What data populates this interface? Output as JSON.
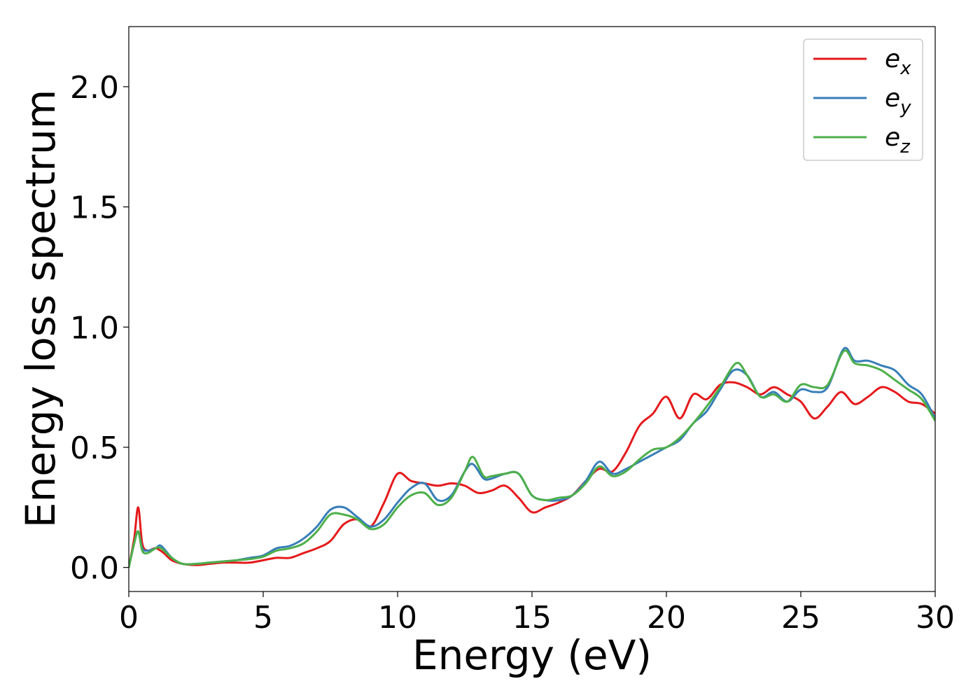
{
  "chart_data": {
    "type": "line",
    "xlabel": "Energy (eV)",
    "ylabel": "Energy loss spectrum",
    "xlim": [
      0,
      30
    ],
    "ylim": [
      -0.1,
      2.25
    ],
    "xticks": [
      "0",
      "5",
      "10",
      "15",
      "20",
      "25",
      "30"
    ],
    "yticks": [
      "0.0",
      "0.5",
      "1.0",
      "1.5",
      "2.0"
    ],
    "grid": false,
    "legend_position": "top-right",
    "series": [
      {
        "name": "e",
        "subscript": "x",
        "color": "#e41a1c",
        "x": [
          0,
          0.2,
          0.35,
          0.5,
          0.7,
          1.0,
          1.3,
          1.6,
          2.0,
          2.5,
          3.0,
          3.5,
          4.0,
          4.5,
          5.0,
          5.5,
          6.0,
          6.5,
          7.0,
          7.5,
          8.0,
          8.5,
          9.0,
          9.5,
          10.0,
          10.5,
          11.0,
          11.5,
          12.0,
          12.5,
          13.0,
          13.5,
          14.0,
          14.5,
          15.0,
          15.5,
          16.0,
          16.5,
          17.0,
          17.5,
          18.0,
          18.5,
          19.0,
          19.5,
          20.0,
          20.5,
          21.0,
          21.5,
          22.0,
          22.5,
          23.0,
          23.5,
          24.0,
          24.5,
          25.0,
          25.5,
          26.0,
          26.5,
          27.0,
          27.5,
          28.0,
          28.5,
          29.0,
          29.5,
          30.0
        ],
        "values": [
          0.0,
          0.12,
          0.25,
          0.1,
          0.07,
          0.08,
          0.06,
          0.03,
          0.015,
          0.01,
          0.015,
          0.02,
          0.02,
          0.02,
          0.03,
          0.04,
          0.04,
          0.06,
          0.08,
          0.11,
          0.18,
          0.2,
          0.17,
          0.27,
          0.39,
          0.36,
          0.35,
          0.34,
          0.35,
          0.34,
          0.31,
          0.32,
          0.34,
          0.29,
          0.23,
          0.25,
          0.27,
          0.3,
          0.36,
          0.41,
          0.4,
          0.48,
          0.59,
          0.64,
          0.71,
          0.62,
          0.72,
          0.7,
          0.76,
          0.77,
          0.75,
          0.72,
          0.75,
          0.72,
          0.69,
          0.62,
          0.67,
          0.73,
          0.68,
          0.71,
          0.75,
          0.73,
          0.69,
          0.68,
          0.64
        ]
      },
      {
        "name": "e",
        "subscript": "y",
        "color": "#377eb8",
        "x": [
          0,
          0.2,
          0.35,
          0.5,
          0.7,
          1.0,
          1.2,
          1.6,
          2.0,
          2.5,
          3.0,
          3.5,
          4.0,
          4.5,
          5.0,
          5.5,
          6.0,
          6.5,
          7.0,
          7.5,
          8.0,
          8.5,
          9.0,
          9.5,
          10.0,
          10.5,
          11.0,
          11.5,
          12.0,
          12.5,
          12.8,
          13.2,
          13.5,
          14.0,
          14.5,
          15.0,
          15.5,
          16.0,
          16.5,
          17.0,
          17.5,
          18.0,
          18.5,
          19.0,
          19.5,
          20.0,
          20.5,
          21.0,
          21.5,
          22.0,
          22.5,
          23.0,
          23.5,
          24.0,
          24.5,
          25.0,
          25.5,
          26.0,
          26.6,
          27.0,
          27.5,
          28.0,
          28.5,
          29.0,
          29.5,
          30.0
        ],
        "values": [
          0.0,
          0.1,
          0.15,
          0.08,
          0.07,
          0.08,
          0.09,
          0.04,
          0.015,
          0.015,
          0.02,
          0.025,
          0.03,
          0.04,
          0.05,
          0.08,
          0.09,
          0.12,
          0.17,
          0.24,
          0.25,
          0.21,
          0.17,
          0.2,
          0.27,
          0.33,
          0.35,
          0.28,
          0.3,
          0.4,
          0.43,
          0.37,
          0.37,
          0.39,
          0.39,
          0.3,
          0.28,
          0.28,
          0.3,
          0.36,
          0.44,
          0.39,
          0.41,
          0.44,
          0.47,
          0.5,
          0.53,
          0.6,
          0.65,
          0.74,
          0.82,
          0.8,
          0.71,
          0.73,
          0.69,
          0.74,
          0.73,
          0.75,
          0.91,
          0.86,
          0.86,
          0.84,
          0.82,
          0.76,
          0.72,
          0.62
        ]
      },
      {
        "name": "e",
        "subscript": "z",
        "color": "#4daf4a",
        "x": [
          0,
          0.2,
          0.35,
          0.5,
          0.7,
          1.0,
          1.2,
          1.6,
          2.0,
          2.5,
          3.0,
          3.5,
          4.0,
          4.5,
          5.0,
          5.5,
          6.0,
          6.5,
          7.0,
          7.5,
          8.0,
          8.5,
          9.0,
          9.5,
          10.0,
          10.5,
          11.0,
          11.5,
          12.0,
          12.5,
          12.8,
          13.2,
          13.5,
          14.0,
          14.5,
          15.0,
          15.5,
          16.0,
          16.5,
          17.0,
          17.5,
          18.0,
          18.5,
          19.0,
          19.5,
          20.0,
          20.5,
          21.0,
          21.5,
          22.0,
          22.6,
          23.0,
          23.5,
          24.0,
          24.5,
          25.0,
          25.5,
          26.0,
          26.6,
          27.0,
          27.5,
          28.0,
          28.5,
          29.0,
          29.5,
          30.0
        ],
        "values": [
          0.0,
          0.1,
          0.15,
          0.07,
          0.06,
          0.08,
          0.08,
          0.04,
          0.015,
          0.015,
          0.02,
          0.025,
          0.03,
          0.035,
          0.045,
          0.07,
          0.08,
          0.1,
          0.15,
          0.22,
          0.22,
          0.2,
          0.16,
          0.18,
          0.25,
          0.3,
          0.31,
          0.26,
          0.29,
          0.4,
          0.46,
          0.38,
          0.38,
          0.39,
          0.39,
          0.3,
          0.28,
          0.29,
          0.3,
          0.35,
          0.42,
          0.38,
          0.4,
          0.45,
          0.49,
          0.5,
          0.54,
          0.6,
          0.67,
          0.75,
          0.85,
          0.8,
          0.71,
          0.72,
          0.69,
          0.76,
          0.75,
          0.76,
          0.9,
          0.85,
          0.84,
          0.82,
          0.78,
          0.74,
          0.7,
          0.61
        ]
      }
    ]
  }
}
